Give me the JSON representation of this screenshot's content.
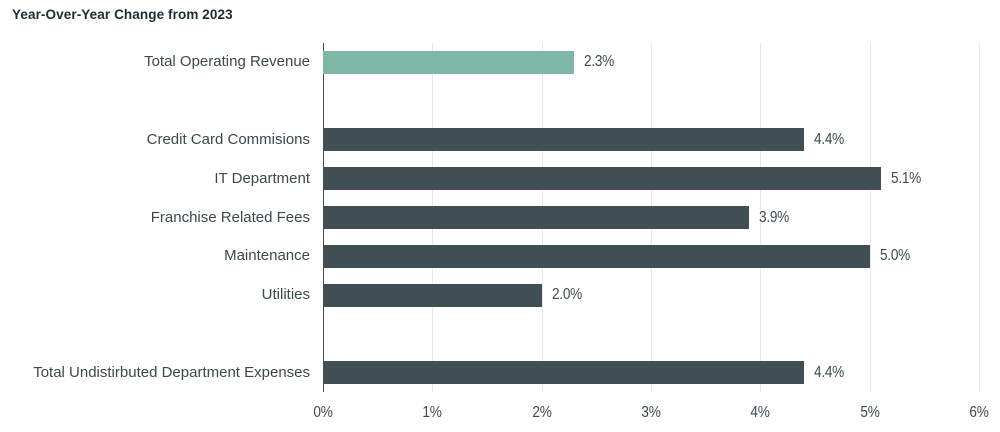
{
  "chart_data": {
    "type": "bar",
    "orientation": "horizontal",
    "title": "Year-Over-Year Change from 2023",
    "categories": [
      "Total Operating Revenue",
      "Credit Card Commisions",
      "IT Department",
      "Franchise Related Fees",
      "Maintenance",
      "Utilities",
      "Total Undistirbuted Department Expenses"
    ],
    "values": [
      2.3,
      4.4,
      5.1,
      3.9,
      5.0,
      2.0,
      4.4
    ],
    "value_labels": [
      "2.3%",
      "4.4%",
      "5.1%",
      "3.9%",
      "5.0%",
      "2.0%",
      "4.4%"
    ],
    "highlight_index": 0,
    "group_breaks_after": [
      0,
      5
    ],
    "xlabel": "",
    "ylabel": "",
    "xlim": [
      0,
      6
    ],
    "x_tick_labels": [
      "0%",
      "1%",
      "2%",
      "3%",
      "4%",
      "5%",
      "6%"
    ],
    "grid": "vertical",
    "legend": "none",
    "colors": {
      "highlight_bar": "#7fb7a7",
      "default_bar": "#414f54",
      "gridline": "#e8e8e8",
      "axis_line": "#3e4c51",
      "label_text": "#3b484c",
      "title_text": "#1e2c34"
    }
  }
}
